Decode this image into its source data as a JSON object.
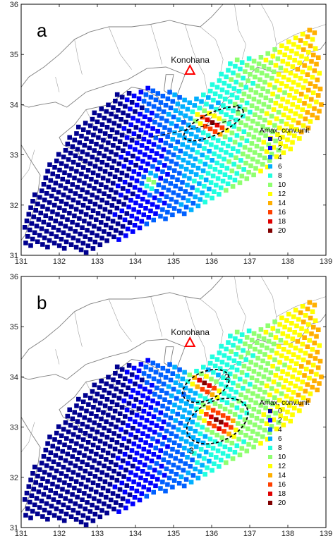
{
  "panels": [
    {
      "id": "a",
      "letter": "a",
      "station": {
        "name": "Konohana",
        "lon": 135.43,
        "lat": 34.68
      },
      "zones": [
        {
          "label": "1",
          "lon": 136.05,
          "lat": 33.62,
          "rx_deg": 0.85,
          "ry_deg": 0.22,
          "angle": -25
        }
      ],
      "hotspots": [
        {
          "lon": 136.0,
          "lat": 33.62,
          "peak": 20,
          "sx": 0.42,
          "sy": 0.18,
          "angle": -25
        },
        {
          "lon": 134.4,
          "lat": 32.45,
          "peak": 11,
          "sx": 0.15,
          "sy": 0.15,
          "angle": 0
        }
      ],
      "dashed_line": [
        [
          134.4,
          33.35
        ],
        [
          136.6,
          33.7
        ]
      ]
    },
    {
      "id": "b",
      "letter": "b",
      "station": {
        "name": "Konohana",
        "lon": 135.43,
        "lat": 34.68
      },
      "zones": [
        {
          "label": "2",
          "lon": 135.85,
          "lat": 33.82,
          "rx_deg": 0.65,
          "ry_deg": 0.28,
          "angle": -25
        },
        {
          "label": "3",
          "lon": 136.15,
          "lat": 33.12,
          "rx_deg": 0.85,
          "ry_deg": 0.4,
          "angle": -25
        }
      ],
      "hotspots": [
        {
          "lon": 135.85,
          "lat": 33.82,
          "peak": 20,
          "sx": 0.4,
          "sy": 0.17,
          "angle": -25
        },
        {
          "lon": 136.2,
          "lat": 33.12,
          "peak": 20,
          "sx": 0.5,
          "sy": 0.25,
          "angle": -25
        },
        {
          "lon": 137.1,
          "lat": 33.5,
          "peak": 11,
          "sx": 0.5,
          "sy": 0.3,
          "angle": -25
        }
      ],
      "dashed_line": []
    }
  ],
  "axes": {
    "xlim": [
      131,
      139
    ],
    "ylim": [
      31,
      36
    ],
    "xticks": [
      131,
      132,
      133,
      134,
      135,
      136,
      137,
      138,
      139
    ],
    "yticks": [
      31,
      32,
      33,
      34,
      35,
      36
    ]
  },
  "legend": {
    "title": "Amax, conv.unit",
    "entries": [
      {
        "value": "0",
        "color": "#00008f"
      },
      {
        "value": "2",
        "color": "#0000ff"
      },
      {
        "value": "4",
        "color": "#0060ff"
      },
      {
        "value": "6",
        "color": "#00afff"
      },
      {
        "value": "8",
        "color": "#20ffdf"
      },
      {
        "value": "10",
        "color": "#8fff70"
      },
      {
        "value": "12",
        "color": "#ffff00"
      },
      {
        "value": "14",
        "color": "#ffaf00"
      },
      {
        "value": "16",
        "color": "#ff4000"
      },
      {
        "value": "18",
        "color": "#df0000"
      },
      {
        "value": "20",
        "color": "#800000"
      }
    ]
  },
  "colors": {
    "station_marker": "#ff0000",
    "coastline": "#808080",
    "background": "#ffffff"
  }
}
